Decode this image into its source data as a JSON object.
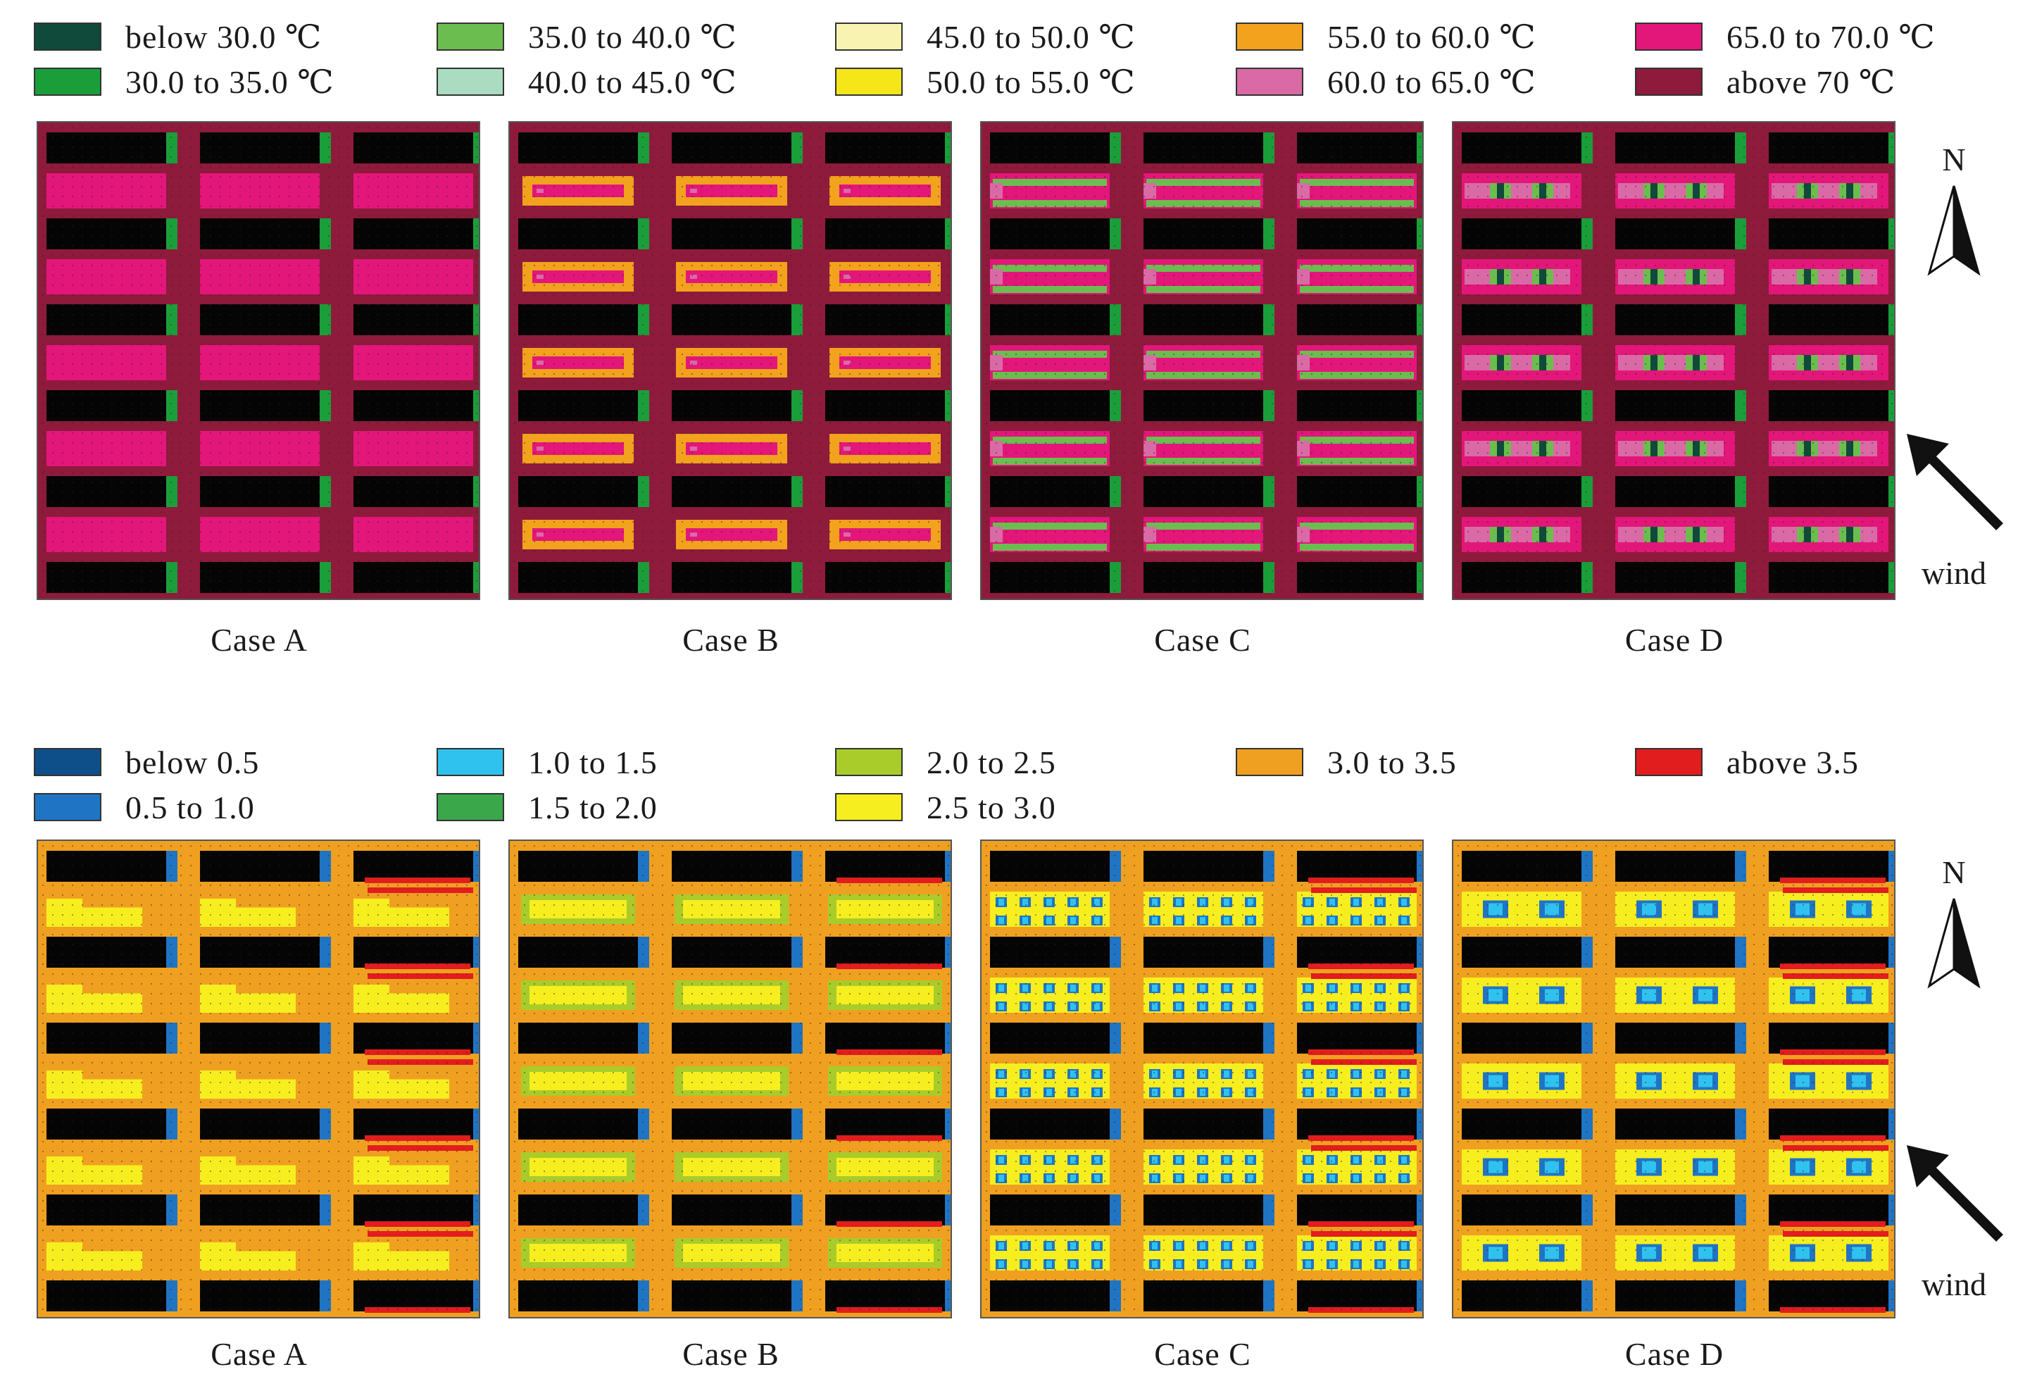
{
  "figure": {
    "temperature_legend": [
      {
        "label": "below 30.0 ℃",
        "color": "#0f4a3a"
      },
      {
        "label": "30.0 to 35.0 ℃",
        "color": "#1a9e3a"
      },
      {
        "label": "35.0 to 40.0 ℃",
        "color": "#6cbd4f"
      },
      {
        "label": "40.0 to 45.0 ℃",
        "color": "#a9dcc0"
      },
      {
        "label": "45.0 to 50.0 ℃",
        "color": "#f8f3b0"
      },
      {
        "label": "50.0 to 55.0 ℃",
        "color": "#f5e61a"
      },
      {
        "label": "55.0 to 60.0 ℃",
        "color": "#f2a21c"
      },
      {
        "label": "60.0 to 65.0 ℃",
        "color": "#d96aa6"
      },
      {
        "label": "65.0 to 70.0 ℃",
        "color": "#e3167a"
      },
      {
        "label": "above 70 ℃",
        "color": "#8e1a3c"
      }
    ],
    "wind_legend": [
      {
        "label": "below 0.5",
        "color": "#0e4f8a"
      },
      {
        "label": "0.5 to 1.0",
        "color": "#1f74c4"
      },
      {
        "label": "1.0 to 1.5",
        "color": "#30c2ee"
      },
      {
        "label": "1.5 to 2.0",
        "color": "#3aa84a"
      },
      {
        "label": "2.0 to 2.5",
        "color": "#a9cc2a"
      },
      {
        "label": "2.5 to 3.0",
        "color": "#f7ee20"
      },
      {
        "label": "3.0  to 3.5",
        "color": "#f0a020"
      },
      {
        "label": "above 3.5",
        "color": "#e21d1d"
      }
    ],
    "cases": [
      "Case A",
      "Case B",
      "Case C",
      "Case D"
    ],
    "compass_label": "N",
    "wind_label": "wind"
  }
}
